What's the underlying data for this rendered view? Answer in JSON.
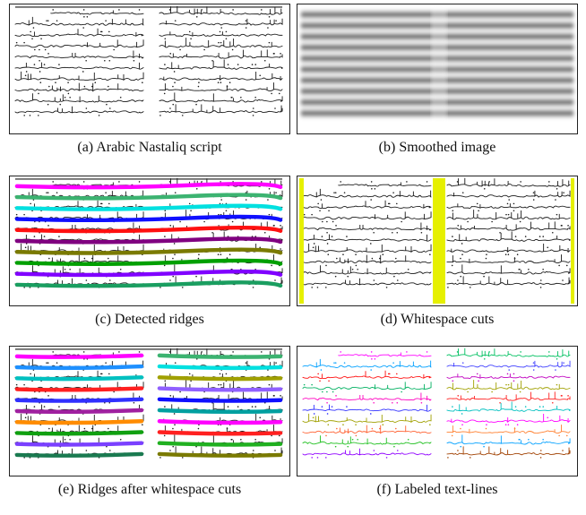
{
  "captions": {
    "a": "(a) Arabic Nastaliq script",
    "b": "(b) Smoothed image",
    "c": "(c) Detected ridges",
    "d": "(d) Whitespace cuts",
    "e": "(e) Ridges after whitespace cuts",
    "f": "(f) Labeled text-lines"
  },
  "colors": {
    "ink": "#1a1a1a",
    "whitespace_cut": "#e6f000",
    "ridges_c": [
      "#ff00ff",
      "#3cb371",
      "#00e0e0",
      "#1010ff",
      "#ff1010",
      "#800080",
      "#7a7a00",
      "#00a000",
      "#8000ff",
      "#1a9e60"
    ],
    "ridges_e_left": [
      "#ff00ff",
      "#1e90ff",
      "#00c0c0",
      "#ff2020",
      "#3030ff",
      "#a020a0",
      "#ff8c00",
      "#10a010",
      "#7a40ff",
      "#1a7a50"
    ],
    "ridges_e_right": [
      "#3cb371",
      "#00e0e0",
      "#a0a000",
      "#9060ff",
      "#1010ff",
      "#00a0a0",
      "#ff00ff",
      "#ff2020",
      "#20b020",
      "#7a7a00"
    ],
    "labels_left": [
      "#ff00ff",
      "#00a0ff",
      "#ff1010",
      "#00b060",
      "#ff00c0",
      "#3030ff",
      "#a0a000",
      "#ff6030",
      "#20c020",
      "#9000ff"
    ],
    "labels_right": [
      "#00c060",
      "#4040ff",
      "#c000c0",
      "#a0a000",
      "#ff2020",
      "#00c0c0",
      "#ff00ff",
      "#ff8030",
      "#00a0ff",
      "#a04000"
    ]
  }
}
